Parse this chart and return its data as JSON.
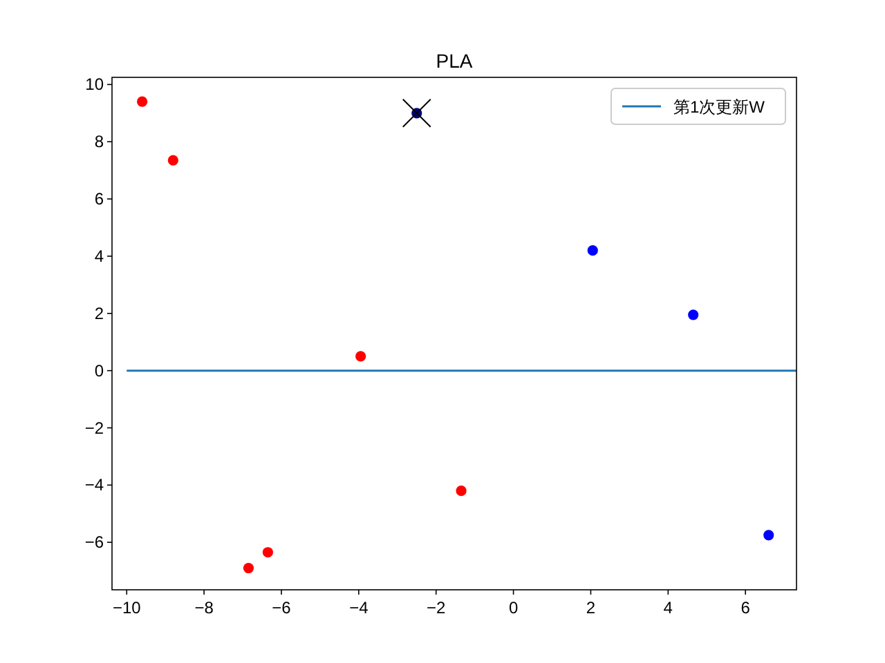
{
  "chart_data": {
    "type": "scatter",
    "title": "PLA",
    "xlim": [
      -10.38,
      7.32
    ],
    "ylim": [
      -7.66,
      10.25
    ],
    "xticks": [
      -10,
      -8,
      -6,
      -4,
      -2,
      0,
      2,
      4,
      6
    ],
    "yticks": [
      -6,
      -4,
      -2,
      0,
      2,
      4,
      6,
      8,
      10
    ],
    "grid": false,
    "legend": "top right",
    "series": [
      {
        "marker": "circle",
        "color": "#ff0000",
        "x": [
          -9.6,
          -8.8,
          -3.95,
          -1.35,
          -6.35,
          -6.85
        ],
        "values": [
          9.4,
          7.35,
          0.5,
          -4.2,
          -6.35,
          -6.9
        ]
      },
      {
        "marker": "circle",
        "color": "#0000ff",
        "x": [
          2.05,
          4.65,
          6.6
        ],
        "values": [
          4.2,
          1.95,
          -5.75
        ]
      },
      {
        "marker": "circle",
        "color": "#00007f",
        "x": [
          -2.5
        ],
        "values": [
          9.0
        ]
      },
      {
        "color": "#000000",
        "marker": "cross",
        "x": [
          -2.5
        ],
        "values": [
          9.0
        ]
      },
      {
        "type": "line",
        "marker": "none",
        "name": "第1次更新W",
        "color": "#1f77b4",
        "x": [
          -10,
          7.32
        ],
        "values": [
          0,
          0
        ]
      }
    ]
  }
}
